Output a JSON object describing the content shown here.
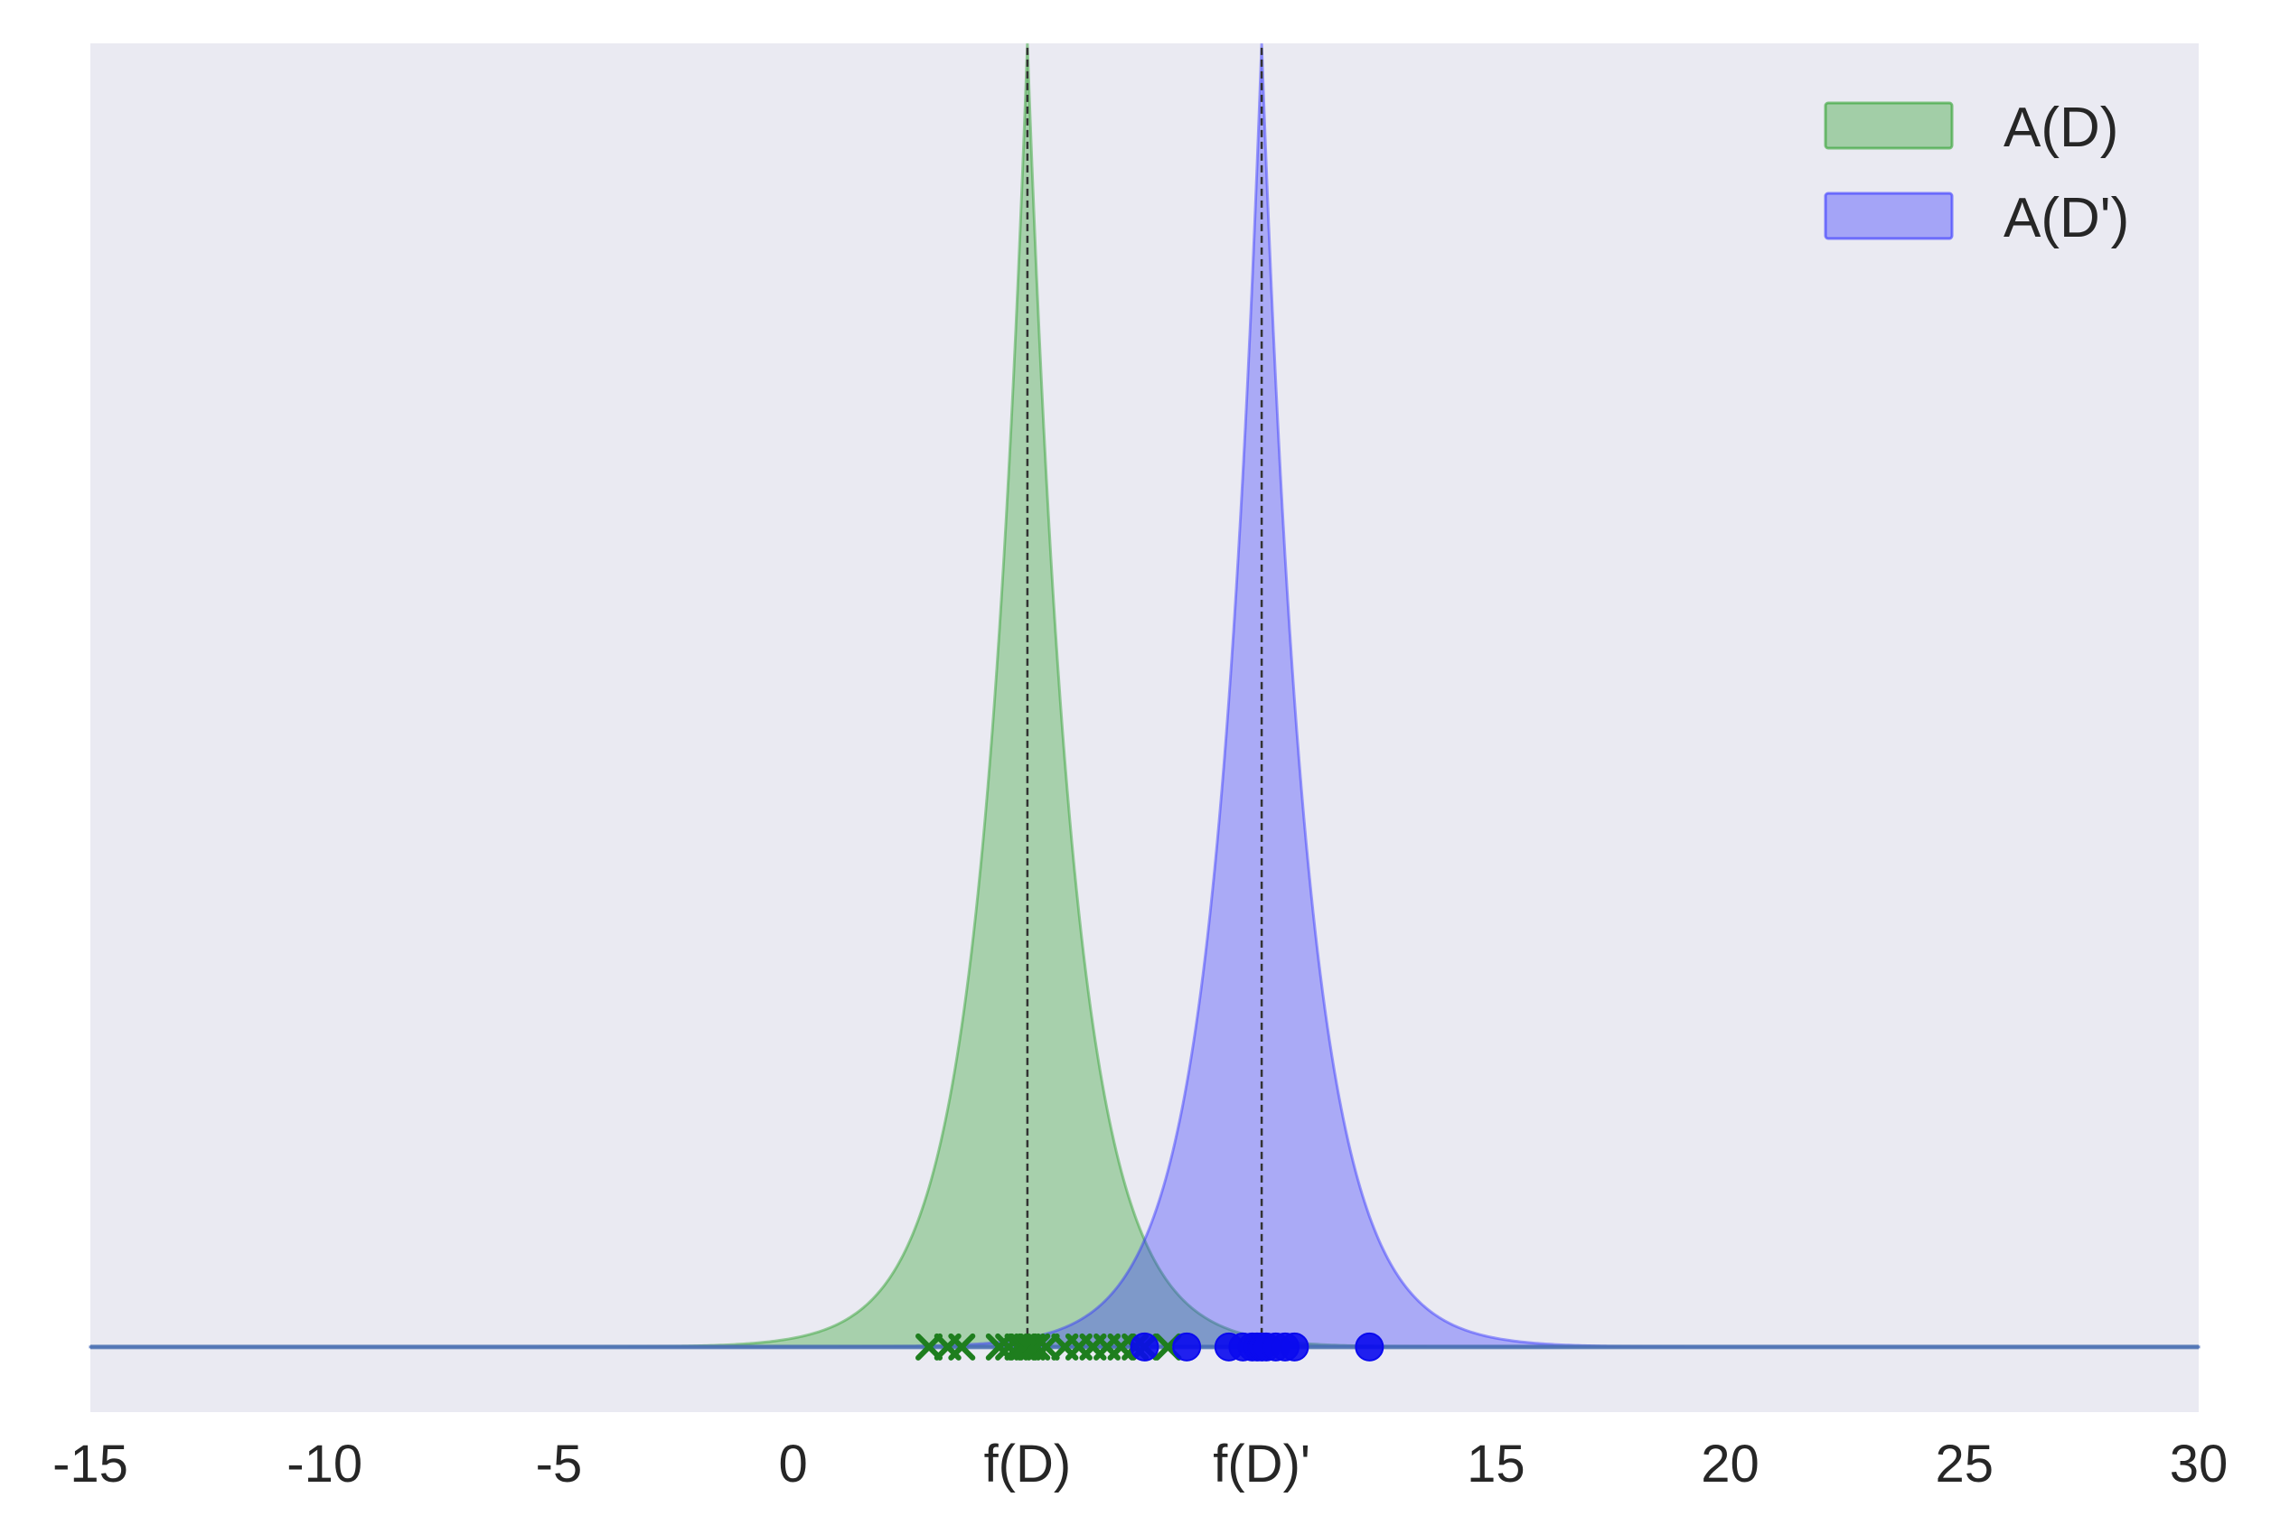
{
  "chart_data": {
    "type": "area",
    "title": "",
    "xlabel": "",
    "ylabel": "",
    "xlim": [
      -15,
      30
    ],
    "ylim": [
      -0.05,
      1.0
    ],
    "grid": false,
    "background": "#eaeaf2",
    "x_ticks": [
      {
        "value": -15,
        "label": "-15"
      },
      {
        "value": -10,
        "label": "-10"
      },
      {
        "value": -5,
        "label": "-5"
      },
      {
        "value": 0,
        "label": "0"
      },
      {
        "value": 5,
        "label": "f(D)"
      },
      {
        "value": 10,
        "label": "f(D)'"
      },
      {
        "value": 15,
        "label": "15"
      },
      {
        "value": 20,
        "label": "20"
      },
      {
        "value": 25,
        "label": "25"
      },
      {
        "value": 30,
        "label": "30"
      }
    ],
    "legend": {
      "position": "upper right",
      "entries": [
        {
          "label": "A(D)",
          "color": "#2ca02c"
        },
        {
          "label": "A(D')",
          "color": "#3333ff"
        }
      ]
    },
    "baseline": {
      "y": 0,
      "color": "#4c72b0"
    },
    "series": [
      {
        "name": "A(D)",
        "kind": "laplace_density",
        "center": 5,
        "scale": 1,
        "peak": 1.0,
        "fill_color": "#2ca02c",
        "fill_alpha": 0.35,
        "median_line": {
          "x": 5,
          "color": "#333333",
          "style": "dashed"
        },
        "samples": {
          "marker": "x",
          "color": "#1e7e1e",
          "x": [
            2.9,
            3.3,
            3.6,
            4.4,
            4.6,
            4.8,
            4.9,
            5.0,
            5.1,
            5.2,
            5.4,
            5.8,
            6.1,
            6.4,
            6.7,
            7.0,
            7.3,
            7.5,
            8.0
          ]
        }
      },
      {
        "name": "A(D')",
        "kind": "laplace_density",
        "center": 10,
        "scale": 1,
        "peak": 1.0,
        "fill_color": "#3333ff",
        "fill_alpha": 0.35,
        "median_line": {
          "x": 10,
          "color": "#333333",
          "style": "dashed"
        },
        "samples": {
          "marker": "o",
          "color": "#0a0aee",
          "x": [
            7.5,
            8.4,
            9.3,
            9.6,
            9.8,
            9.9,
            10.0,
            10.1,
            10.3,
            10.5,
            10.7,
            12.3
          ]
        }
      }
    ]
  }
}
